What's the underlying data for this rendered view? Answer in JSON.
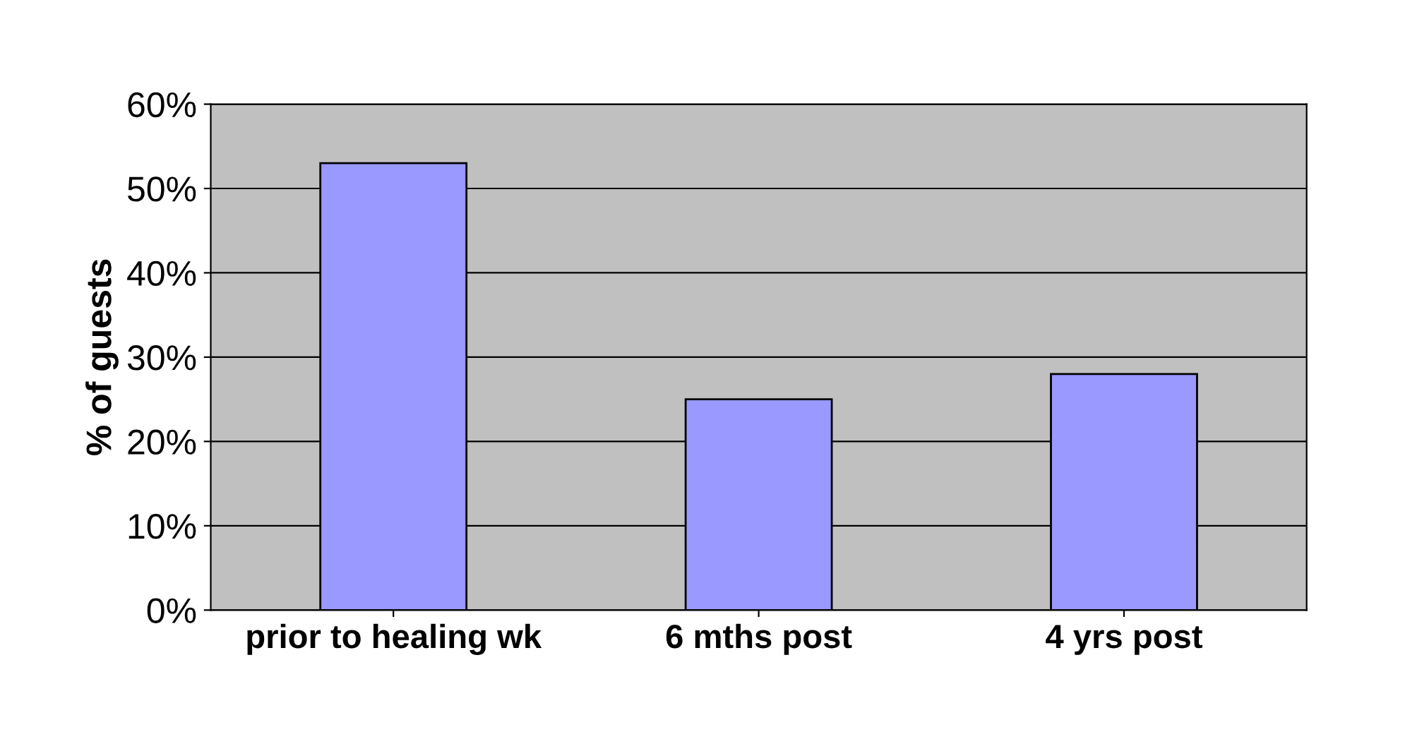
{
  "chart_data": {
    "type": "bar",
    "ylabel": "% of guests",
    "categories": [
      "prior to healing wk",
      "6 mths post",
      "4 yrs post"
    ],
    "values": [
      53,
      25,
      28
    ],
    "color": "#9999ff",
    "ylim": [
      0,
      60
    ],
    "yticks": [
      {
        "value": 0,
        "label": "0%"
      },
      {
        "value": 10,
        "label": "10%"
      },
      {
        "value": 20,
        "label": "20%"
      },
      {
        "value": 30,
        "label": "30%"
      },
      {
        "value": 40,
        "label": "40%"
      },
      {
        "value": 50,
        "label": "50%"
      },
      {
        "value": 60,
        "label": "60%"
      }
    ],
    "grid": "y"
  }
}
